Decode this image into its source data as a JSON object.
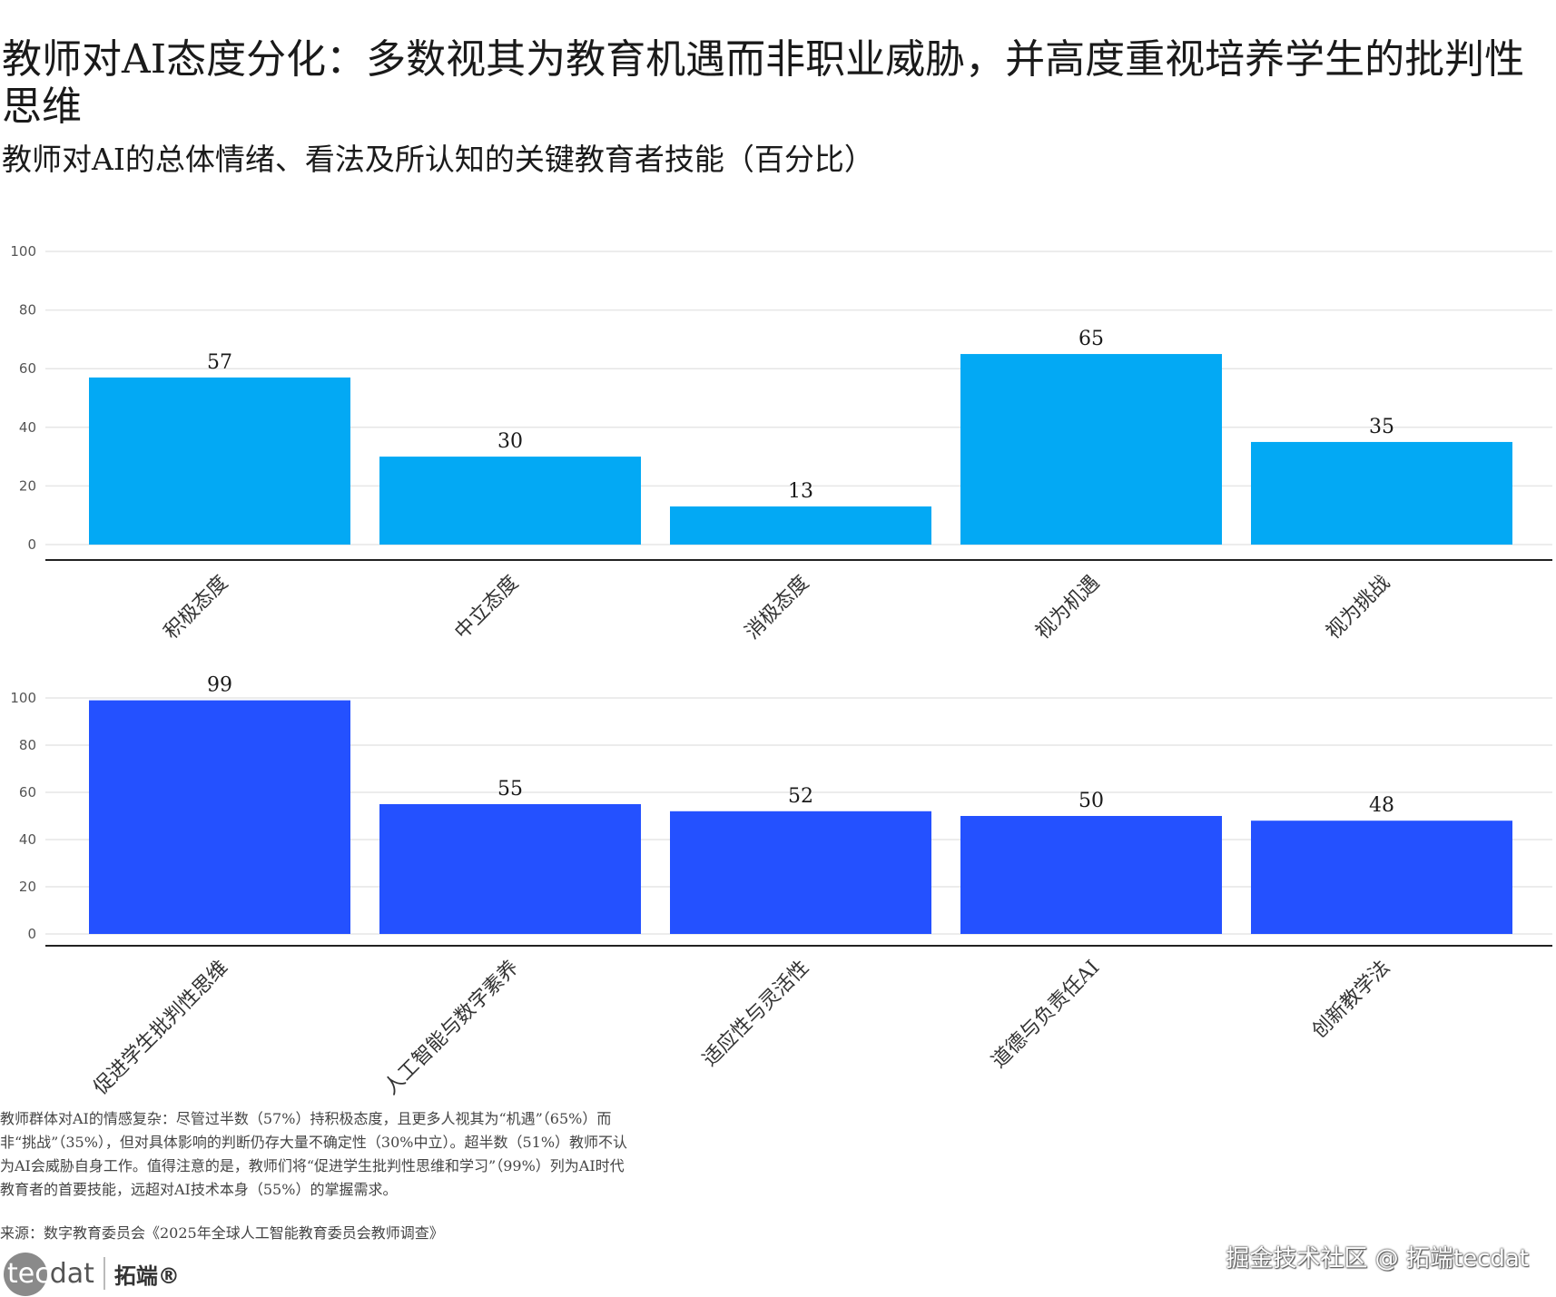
{
  "title": "教师对AI态度分化：多数视其为教育机遇而非职业威胁，并高度重视培养学生的批判性思维",
  "subtitle": "教师对AI的总体情绪、看法及所认知的关键教育者技能（百分比）",
  "colors": {
    "top": "#03A9F4",
    "bottom": "#2451FF",
    "grid": "#e6e6e6",
    "axis": "#222222"
  },
  "chart_data": [
    {
      "type": "bar",
      "title": "",
      "xlabel": "",
      "ylabel": "",
      "ylim": [
        0,
        100
      ],
      "yticks": [
        0,
        20,
        40,
        60,
        80,
        100
      ],
      "categories": [
        "积极态度",
        "中立态度",
        "消极态度",
        "视为机遇",
        "视为挑战"
      ],
      "values": [
        57,
        30,
        13,
        65,
        35
      ]
    },
    {
      "type": "bar",
      "title": "",
      "xlabel": "",
      "ylabel": "",
      "ylim": [
        0,
        100
      ],
      "yticks": [
        0,
        20,
        40,
        60,
        80,
        100
      ],
      "categories": [
        "促进学生批判性思维",
        "人工智能与数字素养",
        "适应性与灵活性",
        "道德与负责任AI",
        "创新教学法"
      ],
      "values": [
        99,
        55,
        52,
        50,
        48
      ]
    }
  ],
  "note": "教师群体对AI的情感复杂：尽管过半数（57%）持积极态度，且更多人视其为“机遇”（65%）而非“挑战”（35%），但对具体影响的判断仍存大量不确定性（30%中立）。超半数（51%）教师不认为AI会威胁自身工作。值得注意的是，教师们将“促进学生批判性思维和学习”（99%）列为AI时代教育者的首要技能，远超对AI技术本身（55%）的掌握需求。",
  "source": "来源：数字教育委员会《2025年全球人工智能教育委员会教师调查》",
  "logo": {
    "mark": "tec",
    "rest": "dat",
    "cn": "拓端®"
  },
  "watermark": "掘金技术社区 @ 拓端tecdat"
}
